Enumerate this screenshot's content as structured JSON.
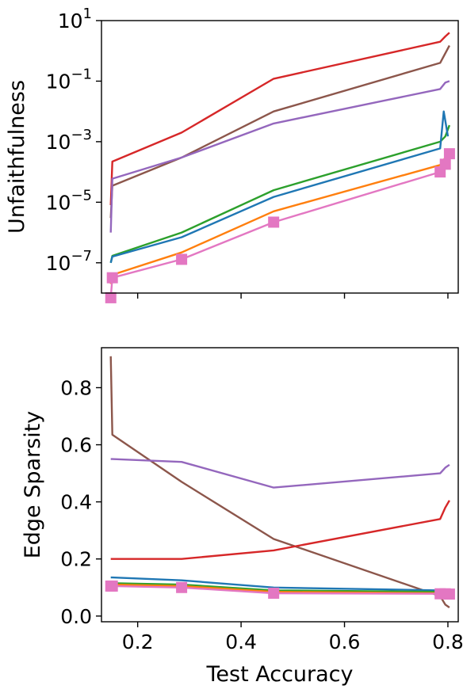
{
  "chart_data": [
    {
      "type": "line",
      "panel": "top",
      "xlabel": "",
      "ylabel": "Unfaithfulness",
      "yscale": "log",
      "xlim": [
        0.13,
        0.82
      ],
      "ylim": [
        1e-08,
        10
      ],
      "xticks": [
        0.2,
        0.4,
        0.6,
        0.8
      ],
      "xtick_labels_visible": false,
      "yticks": [
        1e-07,
        1e-05,
        0.001,
        0.1,
        10
      ],
      "ytick_labels": [
        {
          "base": "10",
          "exp": "−7"
        },
        {
          "base": "10",
          "exp": "−5"
        },
        {
          "base": "10",
          "exp": "−3"
        },
        {
          "base": "10",
          "exp": "−1"
        },
        {
          "base": "10",
          "exp": "1"
        }
      ],
      "grid": false,
      "series": [
        {
          "color": "#d62728",
          "x": [
            0.148,
            0.151,
            0.285,
            0.463,
            0.785,
            0.795,
            0.803
          ],
          "y": [
            8e-06,
            0.00022,
            0.002,
            0.12,
            2.0,
            3.0,
            4.0
          ]
        },
        {
          "color": "#8c564b",
          "x": [
            0.148,
            0.151,
            0.285,
            0.463,
            0.785,
            0.803
          ],
          "y": [
            3e-06,
            3.5e-05,
            0.0003,
            0.01,
            0.4,
            1.5
          ]
        },
        {
          "color": "#9467bd",
          "x": [
            0.148,
            0.151,
            0.285,
            0.463,
            0.785,
            0.795,
            0.803
          ],
          "y": [
            1e-06,
            6e-05,
            0.0003,
            0.004,
            0.055,
            0.09,
            0.1
          ]
        },
        {
          "color": "#2ca02c",
          "x": [
            0.148,
            0.151,
            0.285,
            0.463,
            0.785,
            0.795,
            0.803
          ],
          "y": [
            1e-07,
            1.7e-07,
            1e-06,
            2.5e-05,
            0.001,
            0.0015,
            0.0035
          ]
        },
        {
          "color": "#1f77b4",
          "x": [
            0.148,
            0.151,
            0.285,
            0.463,
            0.785,
            0.792,
            0.8
          ],
          "y": [
            1e-07,
            1.6e-07,
            7e-07,
            1.5e-05,
            0.0006,
            0.01,
            0.0015
          ]
        },
        {
          "color": "#ff7f0e",
          "x": [
            0.148,
            0.151,
            0.285,
            0.463,
            0.785,
            0.795,
            0.803
          ],
          "y": [
            2e-08,
            4e-08,
            2.2e-07,
            5e-06,
            0.00017,
            0.0003,
            0.0004
          ]
        },
        {
          "color": "#e377c2",
          "markers": "square",
          "x": [
            0.148,
            0.151,
            0.285,
            0.463,
            0.785,
            0.795,
            0.803
          ],
          "y": [
            7e-09,
            3.2e-08,
            1.3e-07,
            2.2e-06,
            0.0001,
            0.00018,
            0.0004
          ]
        }
      ]
    },
    {
      "type": "line",
      "panel": "bottom",
      "xlabel": "Test Accuracy",
      "ylabel": "Edge Sparsity",
      "xlim": [
        0.13,
        0.82
      ],
      "ylim": [
        -0.02,
        0.94
      ],
      "xticks": [
        0.2,
        0.4,
        0.6,
        0.8
      ],
      "xtick_labels": [
        "0.2",
        "0.4",
        "0.6",
        "0.8"
      ],
      "yticks": [
        0.0,
        0.2,
        0.4,
        0.6,
        0.8
      ],
      "ytick_labels": [
        "0.0",
        "0.2",
        "0.4",
        "0.6",
        "0.8"
      ],
      "grid": false,
      "series": [
        {
          "color": "#8c564b",
          "x": [
            0.148,
            0.151,
            0.285,
            0.463,
            0.785,
            0.795,
            0.803
          ],
          "y": [
            0.91,
            0.635,
            0.47,
            0.27,
            0.07,
            0.04,
            0.03
          ]
        },
        {
          "color": "#9467bd",
          "x": [
            0.148,
            0.151,
            0.285,
            0.463,
            0.785,
            0.795,
            0.803
          ],
          "y": [
            0.55,
            0.55,
            0.54,
            0.45,
            0.5,
            0.52,
            0.53
          ]
        },
        {
          "color": "#d62728",
          "x": [
            0.148,
            0.151,
            0.285,
            0.463,
            0.785,
            0.795,
            0.803
          ],
          "y": [
            0.2,
            0.2,
            0.2,
            0.23,
            0.34,
            0.38,
            0.405
          ]
        },
        {
          "color": "#1f77b4",
          "x": [
            0.148,
            0.151,
            0.285,
            0.463,
            0.785,
            0.795,
            0.803
          ],
          "y": [
            0.135,
            0.135,
            0.125,
            0.1,
            0.09,
            0.09,
            0.09
          ]
        },
        {
          "color": "#2ca02c",
          "x": [
            0.148,
            0.151,
            0.285,
            0.463,
            0.785,
            0.795,
            0.803
          ],
          "y": [
            0.115,
            0.115,
            0.11,
            0.09,
            0.085,
            0.085,
            0.085
          ]
        },
        {
          "color": "#ff7f0e",
          "x": [
            0.148,
            0.151,
            0.285,
            0.463,
            0.785,
            0.795,
            0.803
          ],
          "y": [
            0.11,
            0.11,
            0.105,
            0.085,
            0.08,
            0.08,
            0.08
          ]
        },
        {
          "color": "#e377c2",
          "markers": "square",
          "x": [
            0.148,
            0.151,
            0.285,
            0.463,
            0.785,
            0.795,
            0.803
          ],
          "y": [
            0.105,
            0.105,
            0.1,
            0.08,
            0.078,
            0.078,
            0.077
          ]
        }
      ]
    }
  ]
}
